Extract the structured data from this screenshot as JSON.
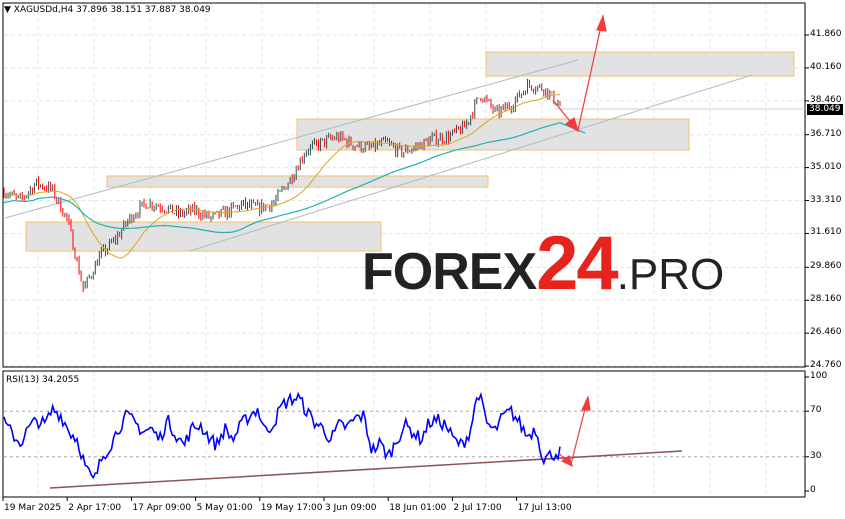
{
  "header": {
    "symbol_title": "XAGUSDd,H4  37.896 38.151 37.887 38.049",
    "menu_icon": "triangle-down-icon"
  },
  "rsi_panel": {
    "title": "RSI(13) 34.2055"
  },
  "watermark": {
    "part1": "FOREX",
    "part2": "24",
    "part3": ".PRO"
  },
  "colors": {
    "bull": "#2f4f4f",
    "bear": "#ff0000",
    "ma_fast": "#daa520",
    "ma_slow": "#20b2aa",
    "rsi": "#0000ff",
    "arrow": "#f03c3c",
    "zone_border": "#f5c16c",
    "zone_fill": "#e2e2e2",
    "watermark_accent": "#e8231d"
  },
  "chart_data": {
    "type": "candlestick",
    "symbol": "XAGUSDd",
    "timeframe": "H4",
    "price_axis": {
      "ticks": [
        "41.860",
        "40.160",
        "38.460",
        "36.710",
        "35.010",
        "33.310",
        "31.610",
        "29.860",
        "28.160",
        "26.460",
        "24.760"
      ],
      "range": [
        24.76,
        42.5
      ],
      "current_price": "38.049"
    },
    "time_axis": {
      "ticks": [
        "19 Mar 2025",
        "2 Apr 17:00",
        "17 Apr 09:00",
        "5 May 01:00",
        "19 May 17:00",
        "3 Jun 09:00",
        "18 Jun 01:00",
        "2 Jul 17:00",
        "17 Jul 13:00"
      ]
    },
    "close_path_approx": [
      33.8,
      33.3,
      34.2,
      33.9,
      32.3,
      28.7,
      30.4,
      31.3,
      32.5,
      33.2,
      33.0,
      32.6,
      32.8,
      32.4,
      32.7,
      33.1,
      32.9,
      33.2,
      34.4,
      35.9,
      36.3,
      36.6,
      36.2,
      36.0,
      36.3,
      35.8,
      36.1,
      36.5,
      36.6,
      37.1,
      38.8,
      37.8,
      38.3,
      39.3,
      39.1,
      38.2
    ],
    "support_resistance_zones": [
      [
        30.7,
        32.2
      ],
      [
        34.0,
        34.58
      ],
      [
        35.92,
        37.52
      ],
      [
        39.74,
        40.98
      ]
    ],
    "rsi": {
      "period": 13,
      "value": 34.2055,
      "ticks": [
        "100",
        "70",
        "30",
        "0"
      ],
      "levels": [
        70,
        30
      ],
      "path_approx": [
        60,
        50,
        42,
        55,
        62,
        58,
        72,
        66,
        52,
        45,
        20,
        8,
        30,
        40,
        55,
        66,
        60,
        52,
        55,
        45,
        62,
        50,
        40,
        55,
        58,
        48,
        40,
        55,
        45,
        58,
        66,
        72,
        52,
        60,
        75,
        80,
        82,
        70,
        60,
        55,
        45,
        58,
        56,
        64,
        66,
        35,
        42,
        30,
        44,
        58,
        52,
        45,
        60,
        62,
        58,
        45,
        40,
        52,
        88,
        60,
        52,
        65,
        70,
        60,
        48,
        55,
        28,
        32,
        34
      ]
    },
    "indicators": [
      "MA fast",
      "MA slow"
    ]
  }
}
